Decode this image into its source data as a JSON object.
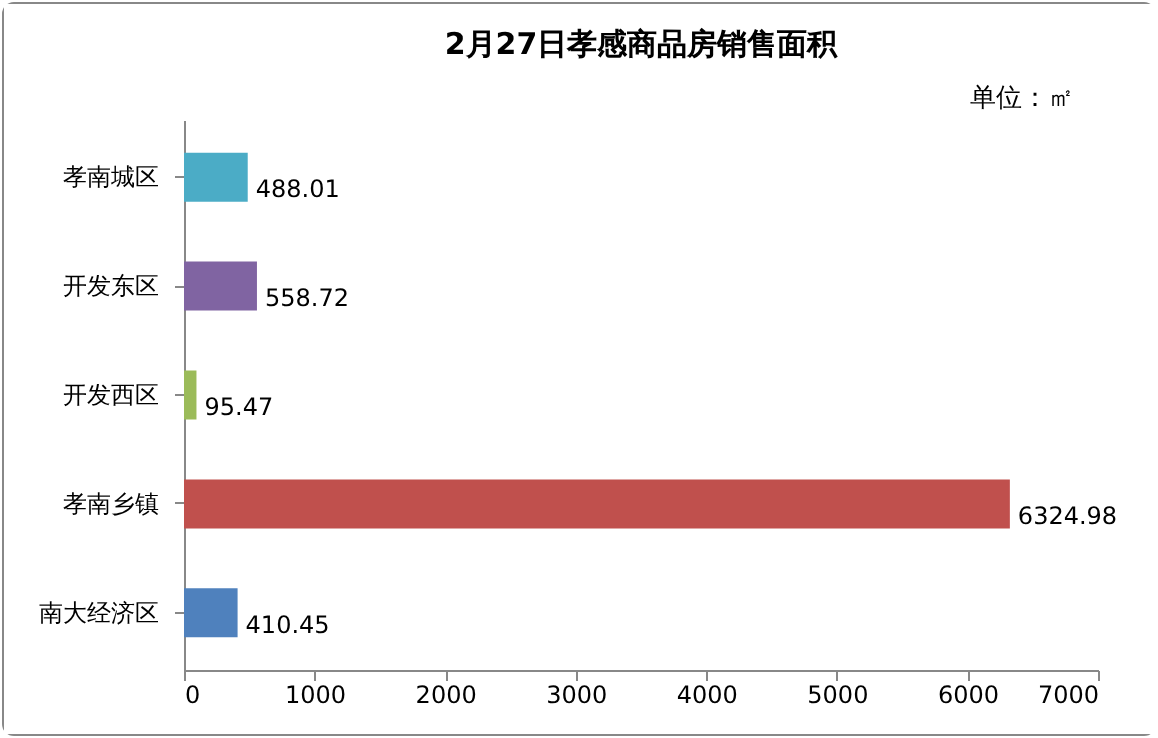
{
  "chart_data": {
    "type": "bar",
    "orientation": "horizontal",
    "title": "2月27日孝感商品房销售面积",
    "annotations": [
      "单位：㎡"
    ],
    "categories": [
      "孝南城区",
      "开发东区",
      "开发西区",
      "孝南乡镇",
      "南大经济区"
    ],
    "values": [
      488.01,
      558.72,
      95.47,
      6324.98,
      410.45
    ],
    "colors": [
      "#4bacc6",
      "#8064a2",
      "#9bbb59",
      "#c0504d",
      "#4f81bd"
    ],
    "xlim": [
      0,
      7000
    ],
    "xticks": [
      0,
      1000,
      2000,
      3000,
      4000,
      5000,
      6000,
      7000
    ],
    "data_labels": true,
    "grid": false
  }
}
